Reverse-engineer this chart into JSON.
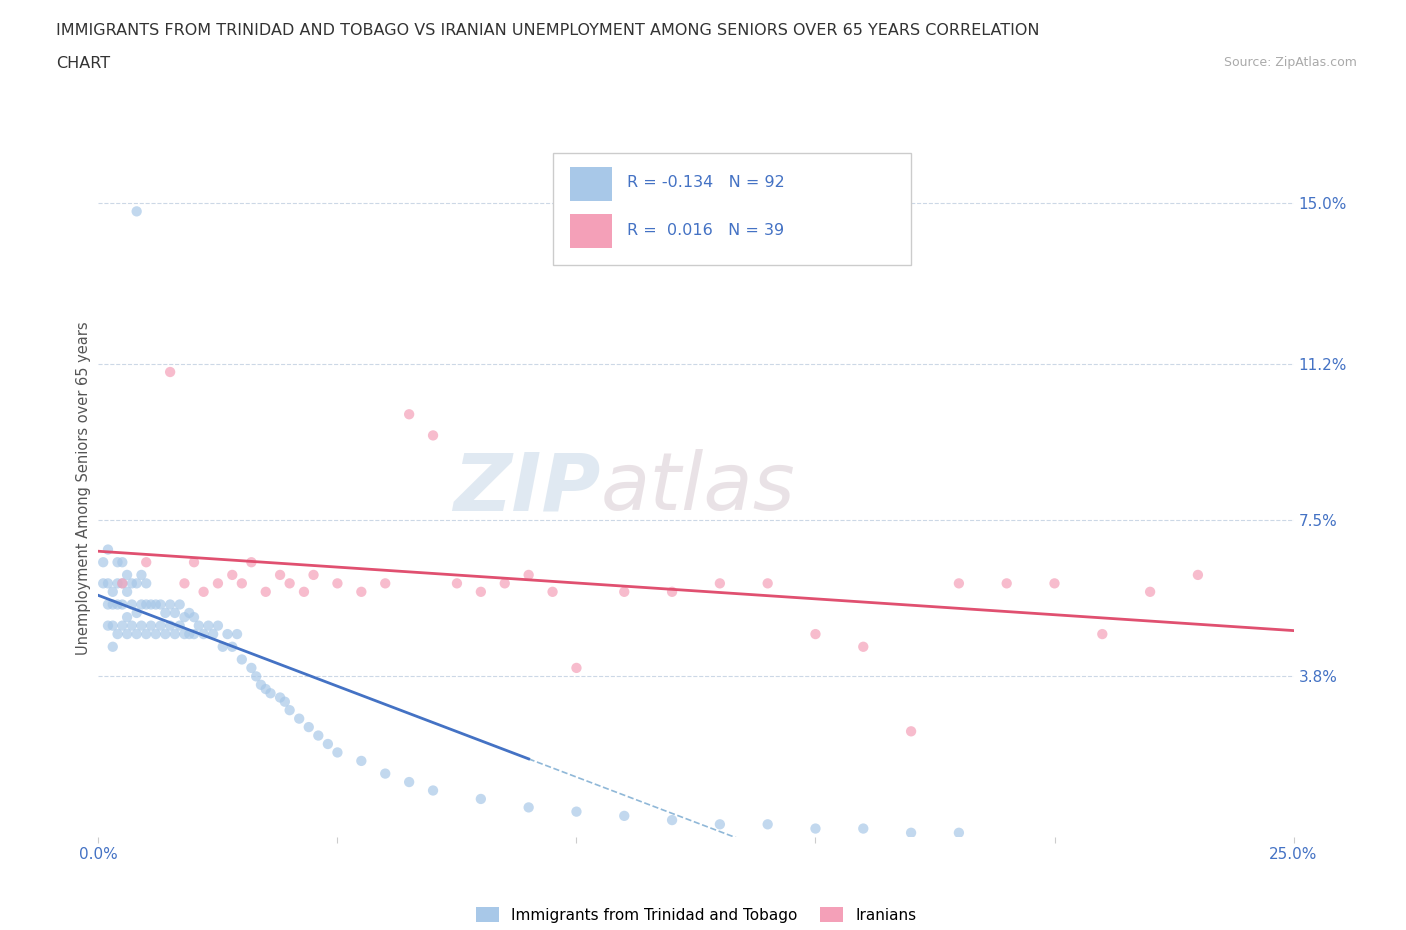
{
  "title_line1": "IMMIGRANTS FROM TRINIDAD AND TOBAGO VS IRANIAN UNEMPLOYMENT AMONG SENIORS OVER 65 YEARS CORRELATION",
  "title_line2": "CHART",
  "source_text": "Source: ZipAtlas.com",
  "ylabel": "Unemployment Among Seniors over 65 years",
  "xlim": [
    0.0,
    0.25
  ],
  "ylim": [
    0.0,
    0.165
  ],
  "ytick_positions": [
    0.038,
    0.075,
    0.112,
    0.15
  ],
  "yticklabels_right": [
    "3.8%",
    "7.5%",
    "11.2%",
    "15.0%"
  ],
  "hlines": [
    0.038,
    0.075,
    0.112,
    0.15
  ],
  "trinidad_color": "#a8c8e8",
  "iranian_color": "#f4a0b8",
  "trendline_trinidad_color": "#4472c4",
  "trendline_iranian_color": "#e05070",
  "trendline_dashed_color": "#90b8d8",
  "R_trinidad": -0.134,
  "N_trinidad": 92,
  "R_iranian": 0.016,
  "N_iranian": 39,
  "background_color": "#ffffff",
  "watermark_zip": "ZIP",
  "watermark_atlas": "atlas",
  "legend_label_1": "Immigrants from Trinidad and Tobago",
  "legend_label_2": "Iranians",
  "trinidad_x": [
    0.001,
    0.001,
    0.002,
    0.002,
    0.002,
    0.002,
    0.003,
    0.003,
    0.003,
    0.003,
    0.004,
    0.004,
    0.004,
    0.004,
    0.005,
    0.005,
    0.005,
    0.005,
    0.006,
    0.006,
    0.006,
    0.006,
    0.007,
    0.007,
    0.007,
    0.008,
    0.008,
    0.008,
    0.009,
    0.009,
    0.009,
    0.01,
    0.01,
    0.01,
    0.011,
    0.011,
    0.012,
    0.012,
    0.013,
    0.013,
    0.014,
    0.014,
    0.015,
    0.015,
    0.016,
    0.016,
    0.017,
    0.017,
    0.018,
    0.018,
    0.019,
    0.019,
    0.02,
    0.02,
    0.021,
    0.022,
    0.023,
    0.024,
    0.025,
    0.026,
    0.027,
    0.028,
    0.029,
    0.03,
    0.032,
    0.033,
    0.034,
    0.035,
    0.036,
    0.038,
    0.039,
    0.04,
    0.042,
    0.044,
    0.046,
    0.048,
    0.05,
    0.055,
    0.06,
    0.065,
    0.07,
    0.08,
    0.09,
    0.1,
    0.11,
    0.12,
    0.13,
    0.14,
    0.15,
    0.16,
    0.17,
    0.18
  ],
  "trinidad_y": [
    0.06,
    0.065,
    0.05,
    0.055,
    0.06,
    0.068,
    0.045,
    0.05,
    0.055,
    0.058,
    0.048,
    0.055,
    0.06,
    0.065,
    0.05,
    0.055,
    0.06,
    0.065,
    0.048,
    0.052,
    0.058,
    0.062,
    0.05,
    0.055,
    0.06,
    0.048,
    0.053,
    0.06,
    0.05,
    0.055,
    0.062,
    0.048,
    0.055,
    0.06,
    0.05,
    0.055,
    0.048,
    0.055,
    0.05,
    0.055,
    0.048,
    0.053,
    0.05,
    0.055,
    0.048,
    0.053,
    0.05,
    0.055,
    0.048,
    0.052,
    0.048,
    0.053,
    0.048,
    0.052,
    0.05,
    0.048,
    0.05,
    0.048,
    0.05,
    0.045,
    0.048,
    0.045,
    0.048,
    0.042,
    0.04,
    0.038,
    0.036,
    0.035,
    0.034,
    0.033,
    0.032,
    0.03,
    0.028,
    0.026,
    0.024,
    0.022,
    0.02,
    0.018,
    0.015,
    0.013,
    0.011,
    0.009,
    0.007,
    0.006,
    0.005,
    0.004,
    0.003,
    0.003,
    0.002,
    0.002,
    0.001,
    0.001
  ],
  "trinidad_outlier_x": [
    0.008
  ],
  "trinidad_outlier_y": [
    0.148
  ],
  "iranian_x": [
    0.005,
    0.01,
    0.015,
    0.018,
    0.02,
    0.022,
    0.025,
    0.028,
    0.03,
    0.032,
    0.035,
    0.038,
    0.04,
    0.043,
    0.045,
    0.05,
    0.055,
    0.06,
    0.065,
    0.07,
    0.075,
    0.08,
    0.085,
    0.09,
    0.095,
    0.1,
    0.11,
    0.12,
    0.13,
    0.14,
    0.15,
    0.16,
    0.17,
    0.18,
    0.19,
    0.2,
    0.21,
    0.22,
    0.23
  ],
  "iranian_y": [
    0.06,
    0.065,
    0.11,
    0.06,
    0.065,
    0.058,
    0.06,
    0.062,
    0.06,
    0.065,
    0.058,
    0.062,
    0.06,
    0.058,
    0.062,
    0.06,
    0.058,
    0.06,
    0.1,
    0.095,
    0.06,
    0.058,
    0.06,
    0.062,
    0.058,
    0.04,
    0.058,
    0.058,
    0.06,
    0.06,
    0.048,
    0.045,
    0.025,
    0.06,
    0.06,
    0.06,
    0.048,
    0.058,
    0.062
  ]
}
